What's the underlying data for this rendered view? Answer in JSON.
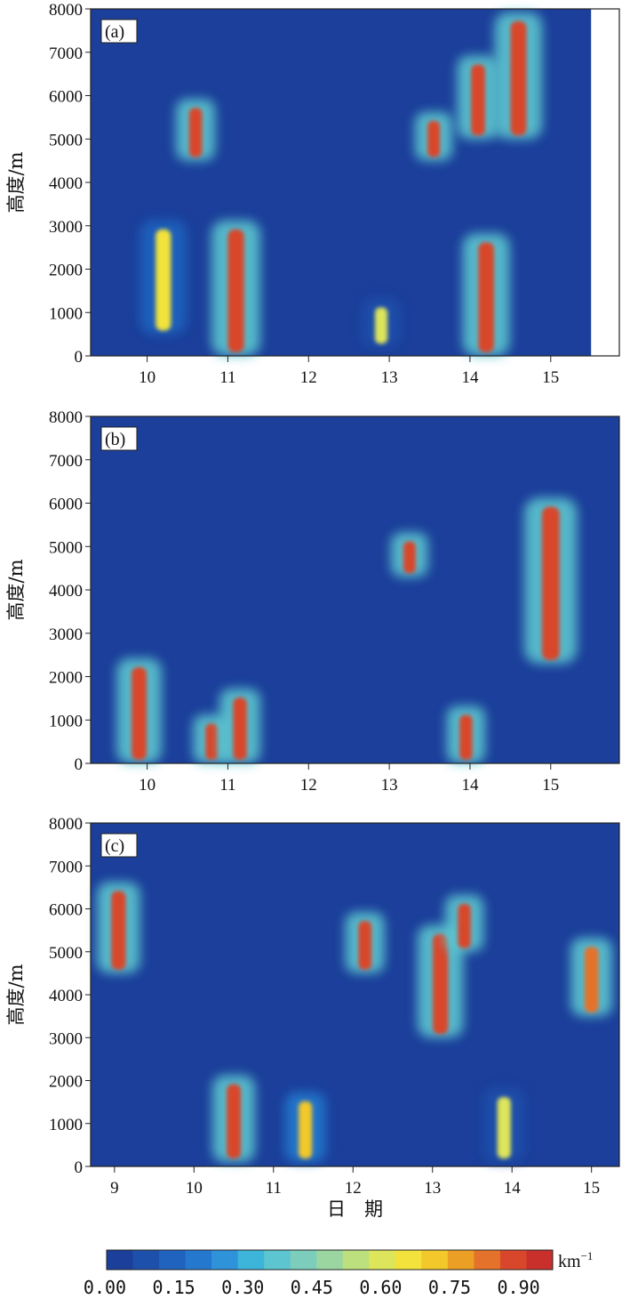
{
  "chart_data": [
    {
      "type": "heatmap",
      "panel": "(a)",
      "ylabel": "高度/m",
      "xlabel": "",
      "ylim": [
        0,
        8000
      ],
      "y_ticks": [
        "0",
        "1000",
        "2000",
        "3000",
        "4000",
        "5000",
        "6000",
        "7000",
        "8000"
      ],
      "x_ticks": [
        "10",
        "11",
        "12",
        "13",
        "14",
        "15"
      ],
      "xlim": [
        9.3,
        15.85
      ],
      "data_end_x": 15.5,
      "value_unit": "km⁻¹",
      "features": [
        {
          "x": 10.2,
          "y_low": 500,
          "y_high": 3000,
          "value": 0.7
        },
        {
          "x": 10.6,
          "y_low": 4500,
          "y_high": 5800,
          "value": 0.95
        },
        {
          "x": 11.1,
          "y_low": 0,
          "y_high": 3000,
          "value": 0.95
        },
        {
          "x": 12.9,
          "y_low": 200,
          "y_high": 1200,
          "value": 0.6
        },
        {
          "x": 13.55,
          "y_low": 4500,
          "y_high": 5500,
          "value": 0.95
        },
        {
          "x": 14.2,
          "y_low": 0,
          "y_high": 2700,
          "value": 0.95
        },
        {
          "x": 14.1,
          "y_low": 5000,
          "y_high": 6800,
          "value": 0.95
        },
        {
          "x": 14.6,
          "y_low": 5000,
          "y_high": 7800,
          "value": 0.95
        }
      ]
    },
    {
      "type": "heatmap",
      "panel": "(b)",
      "ylabel": "高度/m",
      "xlabel": "",
      "ylim": [
        0,
        8000
      ],
      "y_ticks": [
        "0",
        "1000",
        "2000",
        "3000",
        "4000",
        "5000",
        "6000",
        "7000",
        "8000"
      ],
      "x_ticks": [
        "10",
        "11",
        "12",
        "13",
        "14",
        "15"
      ],
      "xlim": [
        9.3,
        15.85
      ],
      "value_unit": "km⁻¹",
      "features": [
        {
          "x": 9.9,
          "y_low": 0,
          "y_high": 2300,
          "value": 0.95
        },
        {
          "x": 10.8,
          "y_low": 0,
          "y_high": 1000,
          "value": 0.95
        },
        {
          "x": 11.15,
          "y_low": 0,
          "y_high": 1600,
          "value": 0.95
        },
        {
          "x": 13.95,
          "y_low": 0,
          "y_high": 1200,
          "value": 0.95
        },
        {
          "x": 13.25,
          "y_low": 4300,
          "y_high": 5200,
          "value": 0.95
        },
        {
          "x": 15.0,
          "y_low": 2300,
          "y_high": 6000,
          "value": 0.95
        }
      ]
    },
    {
      "type": "heatmap",
      "panel": "(c)",
      "ylabel": "高度/m",
      "xlabel": "日　期",
      "ylim": [
        0,
        8000
      ],
      "y_ticks": [
        "0",
        "1000",
        "2000",
        "3000",
        "4000",
        "5000",
        "6000",
        "7000",
        "8000"
      ],
      "x_ticks": [
        "9",
        "10",
        "11",
        "12",
        "13",
        "14",
        "15"
      ],
      "xlim": [
        8.7,
        15.35
      ],
      "value_unit": "km⁻¹",
      "features": [
        {
          "x": 9.05,
          "y_low": 4500,
          "y_high": 6500,
          "value": 0.95
        },
        {
          "x": 10.5,
          "y_low": 100,
          "y_high": 2000,
          "value": 0.95
        },
        {
          "x": 11.4,
          "y_low": 100,
          "y_high": 1600,
          "value": 0.75
        },
        {
          "x": 12.15,
          "y_low": 4500,
          "y_high": 5800,
          "value": 0.95
        },
        {
          "x": 13.1,
          "y_low": 3000,
          "y_high": 5500,
          "value": 0.95
        },
        {
          "x": 13.4,
          "y_low": 5000,
          "y_high": 6200,
          "value": 0.95
        },
        {
          "x": 13.9,
          "y_low": 100,
          "y_high": 1700,
          "value": 0.6
        },
        {
          "x": 15.0,
          "y_low": 3500,
          "y_high": 5200,
          "value": 0.9
        }
      ]
    }
  ],
  "colorbar": {
    "unit": "km",
    "unit_exp": "−1",
    "tick_labels": [
      "0.00",
      "0.15",
      "0.30",
      "0.45",
      "0.60",
      "0.75",
      "0.90"
    ],
    "colors": [
      "#1b3f9a",
      "#1d50ab",
      "#1f63bf",
      "#2479cf",
      "#2f93da",
      "#3db4d9",
      "#5cc5cf",
      "#7ccdbc",
      "#9bd6a0",
      "#bde07e",
      "#dde55a",
      "#f2e23b",
      "#f2c82a",
      "#ec9f25",
      "#e4722a",
      "#d8472c",
      "#c9302c"
    ]
  }
}
